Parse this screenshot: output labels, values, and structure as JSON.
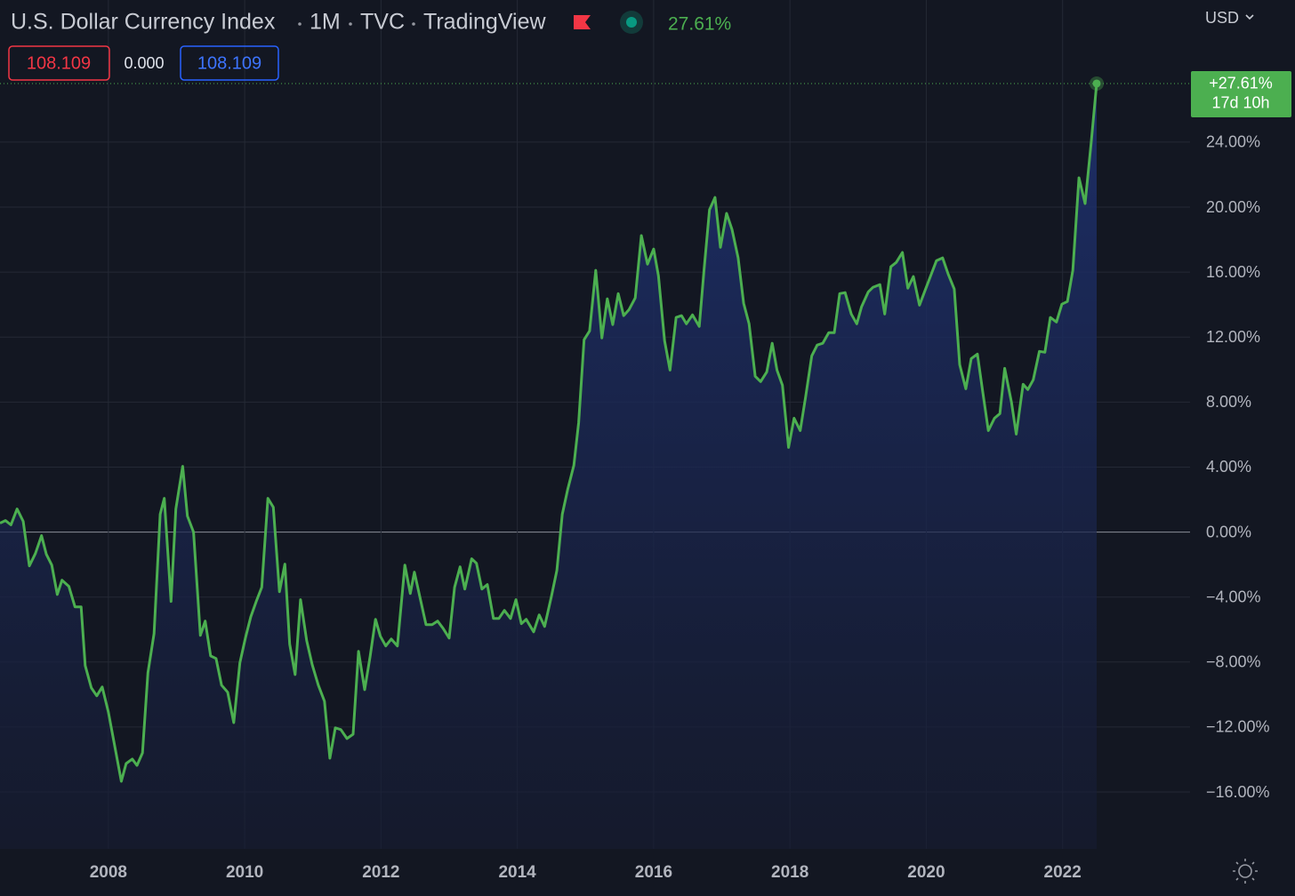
{
  "header": {
    "title": "U.S. Dollar Currency Index",
    "interval": "1M",
    "exchange": "TVC",
    "source": "TradingView",
    "change": "27.61%",
    "values": [
      "108.109",
      "0.000",
      "108.109"
    ],
    "currency": "USD"
  },
  "chart_data": {
    "type": "line",
    "color": "#4caf50",
    "x": [
      2006.41,
      2006.49,
      2006.57,
      2006.66,
      2006.75,
      2006.84,
      2006.93,
      2007.02,
      2007.09,
      2007.17,
      2007.25,
      2007.32,
      2007.42,
      2007.51,
      2007.6,
      2007.66,
      2007.75,
      2007.83,
      2007.91,
      2008.0,
      2008.08,
      2008.19,
      2008.26,
      2008.35,
      2008.42,
      2008.5,
      2008.58,
      2008.67,
      2008.76,
      2008.82,
      2008.92,
      2008.99,
      2009.09,
      2009.16,
      2009.25,
      2009.35,
      2009.42,
      2009.5,
      2009.58,
      2009.66,
      2009.75,
      2009.84,
      2009.93,
      2010.01,
      2010.09,
      2010.17,
      2010.25,
      2010.34,
      2010.42,
      2010.51,
      2010.59,
      2010.66,
      2010.74,
      2010.82,
      2010.91,
      2010.99,
      2011.08,
      2011.17,
      2011.25,
      2011.33,
      2011.41,
      2011.5,
      2011.59,
      2011.67,
      2011.76,
      2011.84,
      2011.92,
      2011.99,
      2012.07,
      2012.15,
      2012.24,
      2012.35,
      2012.43,
      2012.49,
      2012.57,
      2012.66,
      2012.75,
      2012.83,
      2012.91,
      2013.0,
      2013.08,
      2013.16,
      2013.23,
      2013.33,
      2013.4,
      2013.48,
      2013.56,
      2013.65,
      2013.73,
      2013.81,
      2013.9,
      2013.98,
      2014.06,
      2014.13,
      2014.24,
      2014.32,
      2014.4,
      2014.5,
      2014.58,
      2014.66,
      2014.74,
      2014.83,
      2014.9,
      2014.98,
      2015.06,
      2015.15,
      2015.24,
      2015.32,
      2015.4,
      2015.48,
      2015.56,
      2015.64,
      2015.73,
      2015.82,
      2015.91,
      2016.0,
      2016.07,
      2016.16,
      2016.24,
      2016.33,
      2016.41,
      2016.48,
      2016.57,
      2016.67,
      2016.74,
      2016.82,
      2016.9,
      2016.98,
      2017.07,
      2017.15,
      2017.24,
      2017.32,
      2017.4,
      2017.49,
      2017.57,
      2017.66,
      2017.74,
      2017.81,
      2017.89,
      2017.98,
      2018.06,
      2018.15,
      2018.23,
      2018.32,
      2018.4,
      2018.48,
      2018.57,
      2018.65,
      2018.73,
      2018.81,
      2018.9,
      2018.98,
      2019.05,
      2019.15,
      2019.22,
      2019.32,
      2019.39,
      2019.48,
      2019.56,
      2019.65,
      2019.73,
      2019.81,
      2019.9,
      2019.98,
      2020.07,
      2020.15,
      2020.24,
      2020.32,
      2020.41,
      2020.49,
      2020.58,
      2020.66,
      2020.75,
      2020.83,
      2020.91,
      2021.0,
      2021.08,
      2021.15,
      2021.25,
      2021.32,
      2021.42,
      2021.49,
      2021.57,
      2021.66,
      2021.74,
      2021.82,
      2021.91,
      2021.99,
      2022.07,
      2022.15,
      2022.24,
      2022.33,
      2022.42,
      2022.5
    ],
    "values": [
      0.55,
      0.71,
      0.44,
      1.42,
      0.66,
      -2.08,
      -1.32,
      -0.22,
      -1.37,
      -2.03,
      -3.84,
      -2.96,
      -3.34,
      -4.6,
      -4.6,
      -8.22,
      -9.59,
      -10.08,
      -9.53,
      -11.07,
      -12.88,
      -15.34,
      -14.25,
      -13.97,
      -14.36,
      -13.59,
      -8.66,
      -6.25,
      1.1,
      2.08,
      -4.27,
      1.42,
      4.05,
      0.99,
      0,
      -6.36,
      -5.48,
      -7.62,
      -7.78,
      -9.42,
      -9.86,
      -11.73,
      -8.05,
      -6.52,
      -5.21,
      -4.27,
      -3.4,
      2.08,
      1.53,
      -3.67,
      -1.97,
      -6.9,
      -8.77,
      -4.16,
      -6.68,
      -8.16,
      -9.42,
      -10.41,
      -13.92,
      -12.05,
      -12.16,
      -12.71,
      -12.44,
      -7.34,
      -9.7,
      -7.67,
      -5.37,
      -6.41,
      -7.01,
      -6.58,
      -7.01,
      -2.03,
      -3.78,
      -2.47,
      -4.0,
      -5.7,
      -5.7,
      -5.48,
      -5.92,
      -6.52,
      -3.4,
      -2.14,
      -3.51,
      -1.64,
      -1.92,
      -3.51,
      -3.23,
      -5.32,
      -5.32,
      -4.82,
      -5.32,
      -4.16,
      -5.64,
      -5.37,
      -6.14,
      -5.1,
      -5.81,
      -3.95,
      -2.36,
      1.1,
      2.63,
      4.11,
      6.74,
      11.84,
      12.38,
      16.11,
      11.95,
      14.36,
      12.77,
      14.68,
      13.32,
      13.7,
      14.41,
      18.25,
      16.49,
      17.42,
      15.78,
      11.78,
      9.97,
      13.21,
      13.32,
      12.82,
      13.37,
      12.66,
      16.16,
      19.84,
      20.6,
      17.53,
      19.62,
      18.63,
      16.88,
      14.08,
      12.82,
      9.59,
      9.26,
      9.86,
      11.62,
      9.97,
      9.04,
      5.21,
      7.01,
      6.25,
      8.33,
      10.85,
      11.51,
      11.62,
      12.27,
      12.27,
      14.68,
      14.74,
      13.42,
      12.82,
      13.86,
      14.79,
      15.07,
      15.23,
      13.42,
      16.33,
      16.6,
      17.21,
      15.01,
      15.73,
      13.97,
      14.85,
      15.84,
      16.71,
      16.88,
      15.89,
      14.96,
      10.3,
      8.82,
      10.68,
      10.96,
      8.6,
      6.25,
      7.01,
      7.29,
      10.08,
      8.0,
      6.03,
      9.1,
      8.77,
      9.37,
      11.12,
      11.07,
      13.21,
      12.93,
      14.03,
      14.19,
      16.11,
      21.81,
      20.22,
      24.0,
      27.61
    ],
    "last_label": "+27.61%",
    "countdown": "17d 10h",
    "xlim": [
      2006.41,
      2023.87
    ],
    "xticks": [
      2008,
      2010,
      2012,
      2014,
      2016,
      2018,
      2020,
      2022
    ],
    "ylim": [
      -19.5,
      32.75
    ],
    "yticks": [
      {
        "value": 24,
        "label": "24.00%"
      },
      {
        "value": 20,
        "label": "20.00%"
      },
      {
        "value": 16,
        "label": "16.00%"
      },
      {
        "value": 12,
        "label": "12.00%"
      },
      {
        "value": 8,
        "label": "8.00%"
      },
      {
        "value": 4,
        "label": "4.00%"
      },
      {
        "value": 0,
        "label": "0.00%"
      },
      {
        "value": -4,
        "label": "−4.00%"
      },
      {
        "value": -8,
        "label": "−8.00%"
      },
      {
        "value": -12,
        "label": "−12.00%"
      },
      {
        "value": -16,
        "label": "−16.00%"
      }
    ],
    "grid": true
  }
}
